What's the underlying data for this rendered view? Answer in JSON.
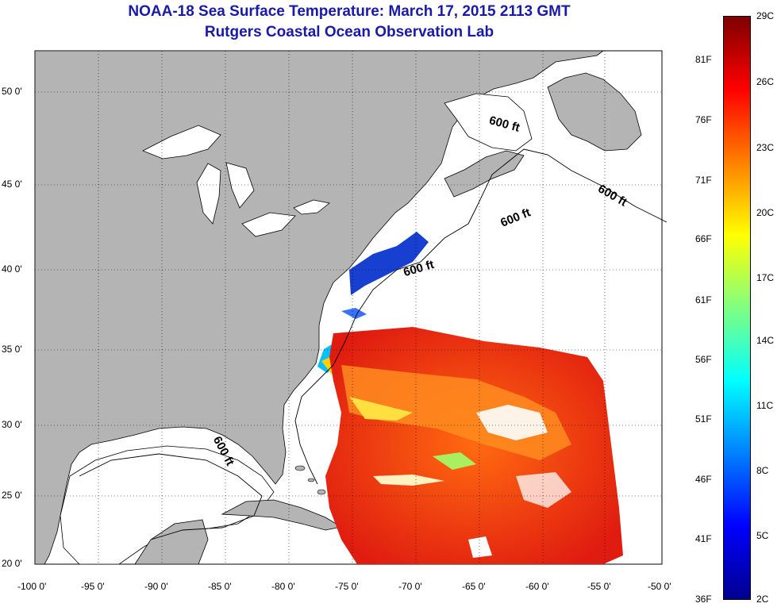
{
  "title": "NOAA-18 Sea Surface Temperature:  March 17, 2015 2113 GMT",
  "subtitle": "Rutgers Coastal Ocean Observation Lab",
  "lon_labels": [
    "-100 0'",
    "-95 0'",
    "-90 0'",
    "-85 0'",
    "-80 0'",
    "-75 0'",
    "-70 0'",
    "-65 0'",
    "-60 0'",
    "-55 0'",
    "-50 0'"
  ],
  "lat_labels": [
    "50 0'",
    "45 0'",
    "40 0'",
    "35 0'",
    "30 0'",
    "25 0'",
    "20 0'"
  ],
  "contour_labels": [
    "600 ft",
    "600 ft",
    "600 ft",
    "600 ft",
    "600 ft"
  ],
  "colorbar": {
    "fahrenheit": [
      "81F",
      "76F",
      "71F",
      "66F",
      "61F",
      "56F",
      "51F",
      "46F",
      "41F",
      "36F"
    ],
    "celsius": [
      "29C",
      "26C",
      "23C",
      "20C",
      "17C",
      "14C",
      "11C",
      "8C",
      "5C",
      "2C"
    ],
    "colors": [
      "#7f0000",
      "#ff0000",
      "#ff8000",
      "#ffff00",
      "#80ff80",
      "#00ffff",
      "#0080ff",
      "#0000ff",
      "#00008f"
    ]
  },
  "colors": {
    "land": "#b4b4b4",
    "ocean": "#ffffff",
    "title": "#1a1aa8"
  }
}
